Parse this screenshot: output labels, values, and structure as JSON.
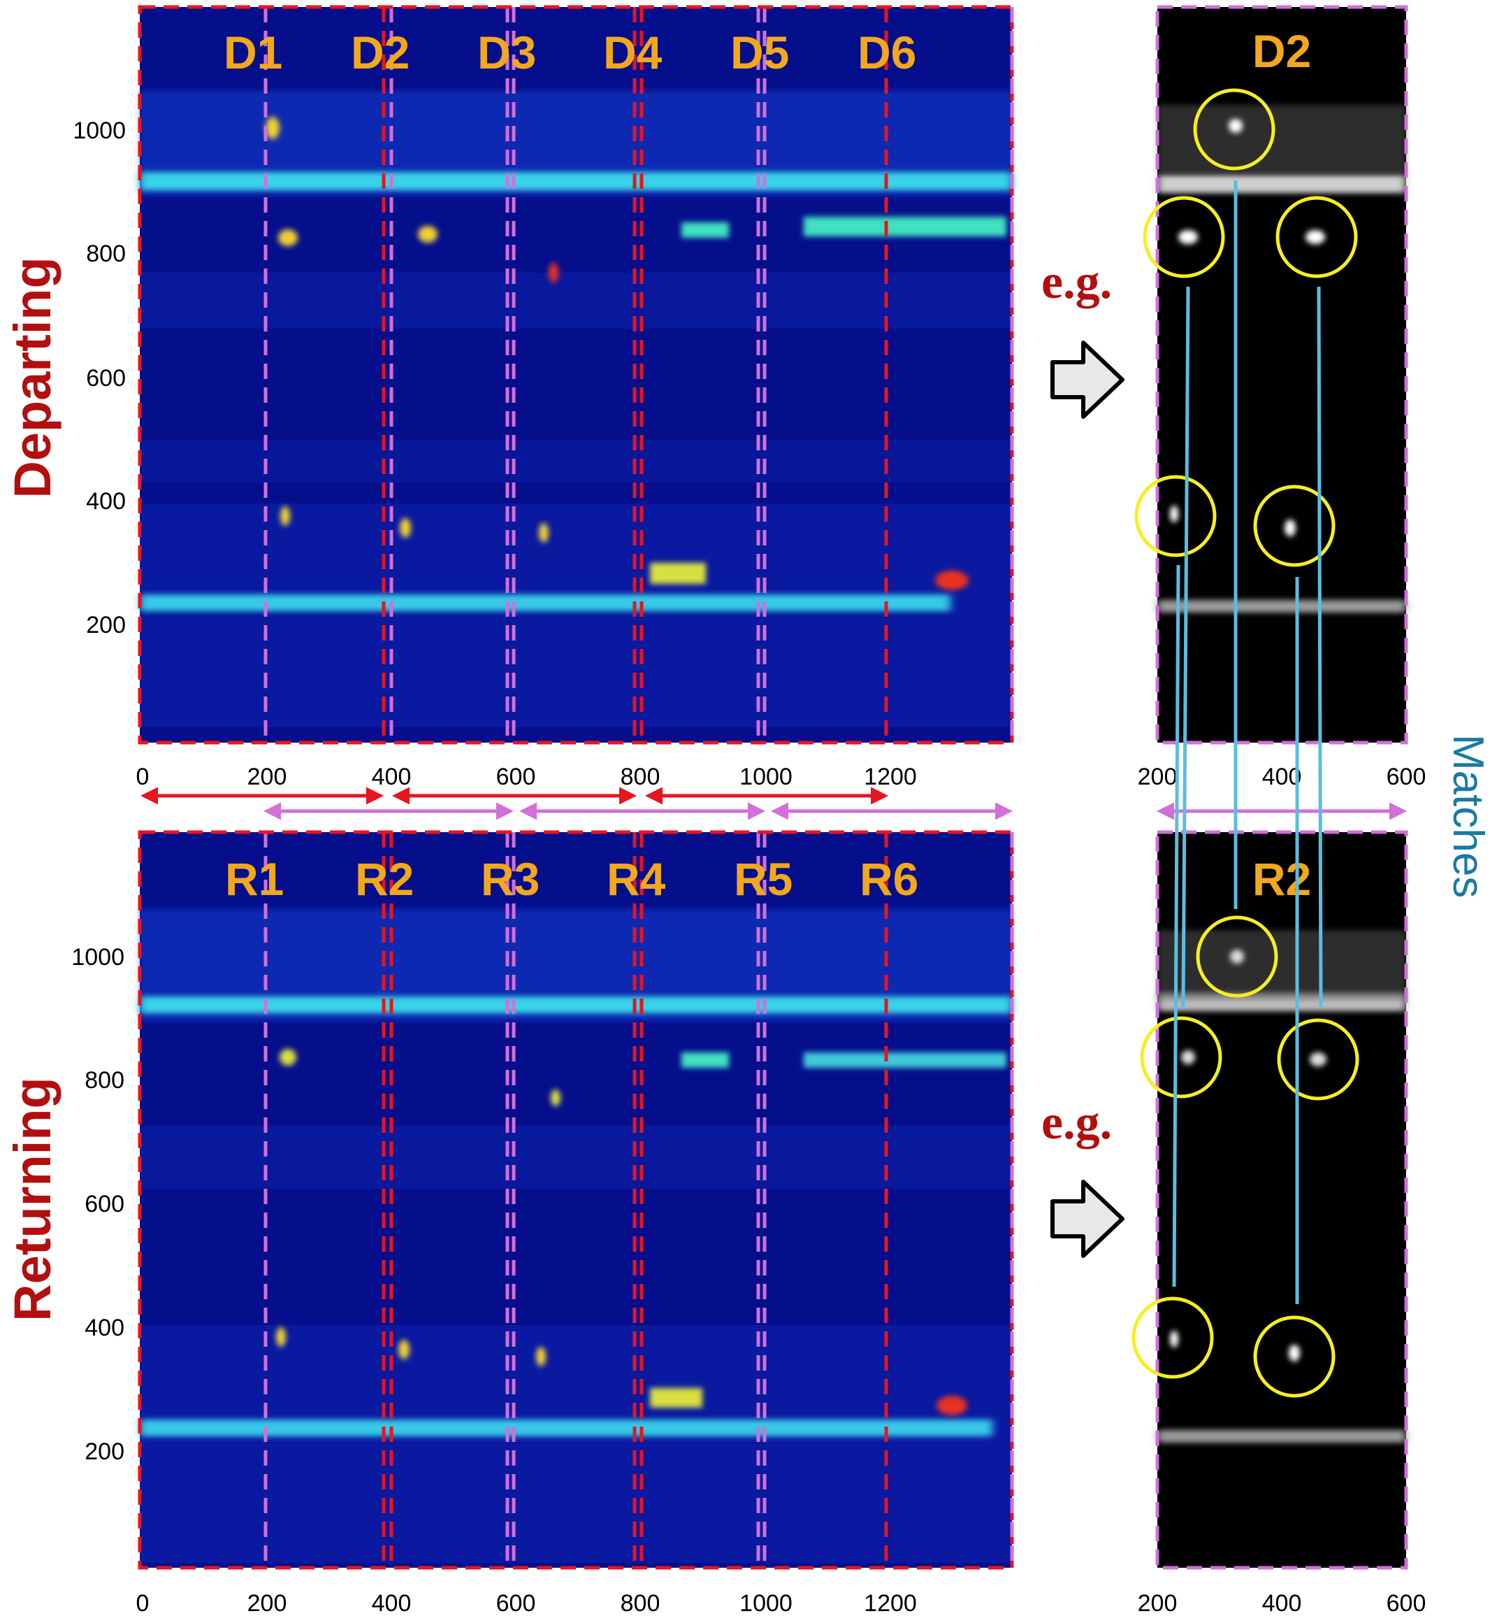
{
  "panels": {
    "departing": {
      "side_label": "Departing",
      "segments": [
        "D1",
        "D2",
        "D3",
        "D4",
        "D5",
        "D6"
      ],
      "y_ticks": [
        "1000",
        "800",
        "600",
        "400",
        "200"
      ],
      "x_ticks": [
        "0",
        "200",
        "400",
        "600",
        "800",
        "1000",
        "1200"
      ]
    },
    "returning": {
      "side_label": "Returning",
      "segments": [
        "R1",
        "R2",
        "R3",
        "R4",
        "R5",
        "R6"
      ],
      "y_ticks": [
        "1000",
        "800",
        "600",
        "400",
        "200"
      ],
      "x_ticks": [
        "0",
        "200",
        "400",
        "600",
        "800",
        "1000",
        "1200"
      ]
    }
  },
  "zoom": {
    "top_label": "D2",
    "bottom_label": "R2",
    "x_ticks": [
      "200",
      "400",
      "600"
    ],
    "example_label": "e.g.",
    "matches_label": "Matches"
  },
  "colors": {
    "heatmap_bg": "#050f8c",
    "hot_band": "#38d3e8",
    "red_dash": "#e8141e",
    "violet_dash": "#d070d8",
    "circle": "#f5f01e",
    "match_line": "#5bbde0",
    "arrow_fill": "#e8e8e8"
  }
}
